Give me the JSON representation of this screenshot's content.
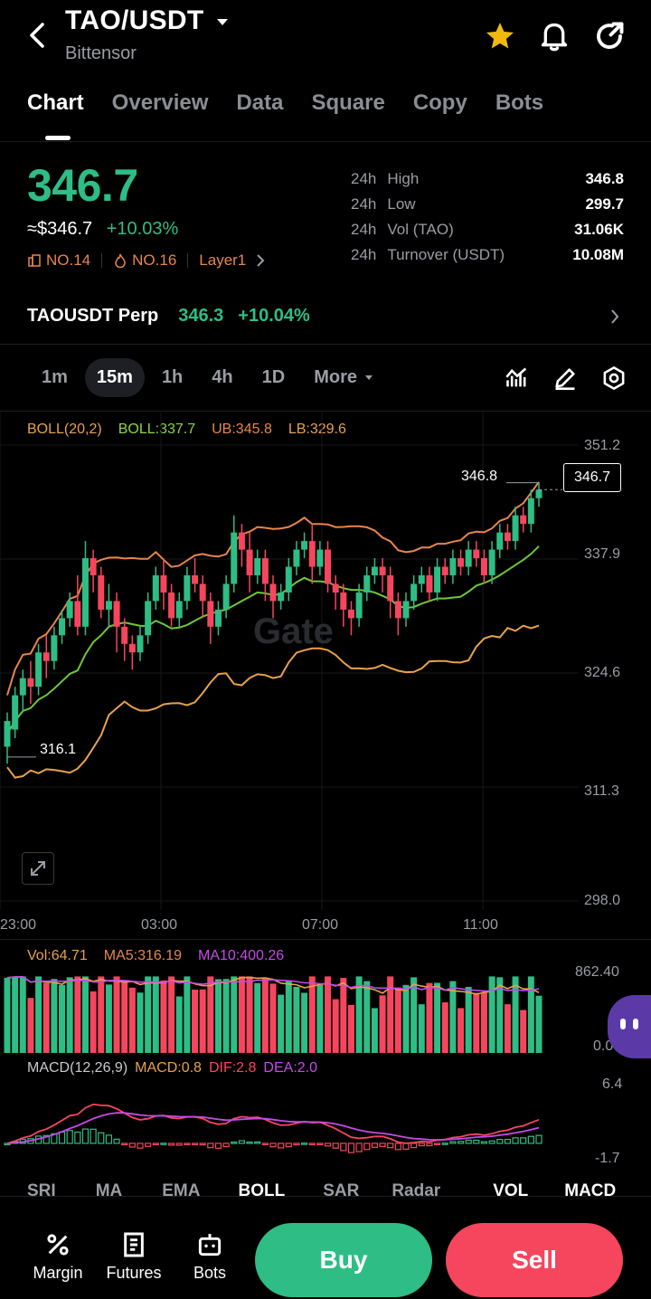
{
  "header": {
    "pair": "TAO/USDT",
    "name": "Bittensor"
  },
  "tabs": [
    "Chart",
    "Overview",
    "Data",
    "Square",
    "Copy",
    "Bots"
  ],
  "price": {
    "last": "346.7",
    "usd": "≈$346.7",
    "change": "+10.03%",
    "rank1": "NO.14",
    "rank2": "NO.16",
    "sector": "Layer1"
  },
  "stats": [
    {
      "prefix": "24h",
      "label": "High",
      "value": "346.8"
    },
    {
      "prefix": "24h",
      "label": "Low",
      "value": "299.7"
    },
    {
      "prefix": "24h",
      "label": "Vol (TAO)",
      "value": "31.06K"
    },
    {
      "prefix": "24h",
      "label": "Turnover (USDT)",
      "value": "10.08M"
    }
  ],
  "perp": {
    "name": "TAOUSDT Perp",
    "price": "346.3",
    "change": "+10.04%"
  },
  "intervals": [
    "1m",
    "15m",
    "1h",
    "4h",
    "1D",
    "More"
  ],
  "indicators": {
    "boll_name": "BOLL(20,2)",
    "boll": "BOLL:337.7",
    "ub": "UB:345.8",
    "lb": "LB:329.6"
  },
  "price_axis": [
    "351.2",
    "337.9",
    "324.6",
    "311.3",
    "298.0"
  ],
  "time_axis": [
    "23:00",
    "03:00",
    "07:00",
    "11:00"
  ],
  "markers": {
    "high": "346.8",
    "low": "316.1",
    "current": "346.7"
  },
  "volume": {
    "vol": "Vol:64.71",
    "ma5": "MA5:316.19",
    "ma10": "MA10:400.26",
    "max": "862.40",
    "min": "0.00"
  },
  "macd": {
    "name": "MACD(12,26,9)",
    "macd": "MACD:0.8",
    "dif": "DIF:2.8",
    "dea": "DEA:2.0",
    "max": "6.4",
    "min": "-1.7"
  },
  "indicator_tabs": [
    "SRI",
    "MA",
    "EMA",
    "BOLL",
    "SAR",
    "Radar",
    "VOL",
    "MACD"
  ],
  "bottom_nav": [
    "Margin",
    "Futures",
    "Bots"
  ],
  "buttons": {
    "buy": "Buy",
    "sell": "Sell"
  },
  "watermark": "Gate",
  "colors": {
    "up": "#2ebd85",
    "down": "#f6465d",
    "accent_orange": "#e8864a",
    "star": "#f0b90b"
  },
  "chart_data": {
    "type": "candlestick",
    "x": [
      "23:00",
      "03:00",
      "07:00",
      "11:00"
    ],
    "ylim": [
      298.0,
      351.2
    ],
    "candles": [
      [
        316,
        319,
        314,
        320
      ],
      [
        318,
        322,
        317,
        323
      ],
      [
        322,
        324,
        320,
        325
      ],
      [
        324,
        323,
        321,
        326
      ],
      [
        323,
        327,
        322,
        328
      ],
      [
        327,
        326,
        324,
        329
      ],
      [
        326,
        329,
        325,
        330
      ],
      [
        329,
        331,
        328,
        332
      ],
      [
        331,
        333,
        330,
        334
      ],
      [
        333,
        330,
        329,
        336
      ],
      [
        330,
        338,
        329,
        340
      ],
      [
        338,
        336,
        334,
        339
      ],
      [
        336,
        332,
        331,
        337
      ],
      [
        332,
        333,
        330,
        335
      ],
      [
        333,
        330,
        327,
        334
      ],
      [
        330,
        328,
        326,
        331
      ],
      [
        328,
        327,
        325,
        329
      ],
      [
        327,
        329,
        326,
        330
      ],
      [
        329,
        333,
        328,
        334
      ],
      [
        333,
        336,
        332,
        337
      ],
      [
        336,
        334,
        332,
        338
      ],
      [
        334,
        331,
        330,
        335
      ],
      [
        331,
        333,
        330,
        334
      ],
      [
        333,
        336,
        332,
        337
      ],
      [
        336,
        335,
        334,
        338
      ],
      [
        335,
        333,
        331,
        336
      ],
      [
        333,
        330,
        328,
        334
      ],
      [
        330,
        332,
        329,
        333
      ],
      [
        332,
        335,
        331,
        336
      ],
      [
        335,
        341,
        334,
        343
      ],
      [
        341,
        339,
        337,
        342
      ],
      [
        339,
        336,
        334,
        341
      ],
      [
        336,
        338,
        335,
        339
      ],
      [
        338,
        335,
        333,
        339
      ],
      [
        335,
        333,
        331,
        336
      ],
      [
        333,
        334,
        332,
        335
      ],
      [
        334,
        337,
        333,
        338
      ],
      [
        337,
        339,
        336,
        340
      ],
      [
        339,
        340,
        338,
        341
      ],
      [
        340,
        337,
        335,
        342
      ],
      [
        337,
        339,
        336,
        340
      ],
      [
        339,
        335,
        334,
        340
      ],
      [
        335,
        334,
        332,
        336
      ],
      [
        334,
        332,
        330,
        335
      ],
      [
        332,
        331,
        329,
        333
      ],
      [
        331,
        334,
        330,
        335
      ],
      [
        334,
        336,
        333,
        337
      ],
      [
        336,
        337,
        335,
        338
      ],
      [
        337,
        336,
        334,
        338
      ],
      [
        336,
        333,
        331,
        337
      ],
      [
        333,
        331,
        329,
        334
      ],
      [
        331,
        333,
        330,
        334
      ],
      [
        333,
        335,
        332,
        336
      ],
      [
        335,
        336,
        334,
        337
      ],
      [
        336,
        334,
        333,
        337
      ],
      [
        334,
        337,
        333,
        338
      ],
      [
        337,
        336,
        335,
        338
      ],
      [
        336,
        338,
        335,
        339
      ],
      [
        338,
        337,
        336,
        339
      ],
      [
        337,
        339,
        336,
        340
      ],
      [
        339,
        338,
        337,
        340
      ],
      [
        338,
        336,
        335,
        339
      ],
      [
        336,
        339,
        335,
        340
      ],
      [
        339,
        341,
        338,
        342
      ],
      [
        341,
        340,
        339,
        342
      ],
      [
        340,
        343,
        339,
        344
      ],
      [
        343,
        342,
        341,
        344
      ],
      [
        342,
        345,
        341,
        346
      ],
      [
        345,
        346,
        344,
        346.8
      ]
    ]
  }
}
